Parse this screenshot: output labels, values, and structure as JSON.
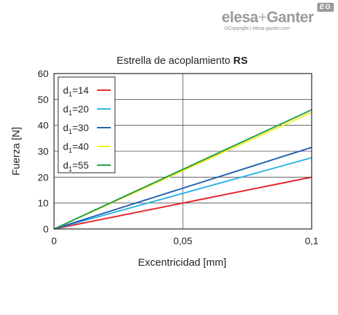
{
  "brand": {
    "logo_a": "elesa",
    "logo_plus": "+",
    "logo_b": "Ganter",
    "badge": "EG",
    "copyright": "©Copyright | elesa-ganter.com"
  },
  "colors": {
    "d14": "#e8202a",
    "d20": "#2ab3e6",
    "d30": "#1f5fae",
    "d40": "#f2ef1c",
    "d55": "#1f9e45"
  },
  "chart_data": {
    "type": "line",
    "title_prefix": "Estrella de acoplamiento ",
    "title_bold": "RS",
    "xlabel": "Excentricidad [mm]",
    "ylabel": "Fuerza [N]",
    "xlim": [
      0,
      0.1
    ],
    "ylim": [
      0,
      60
    ],
    "xticks": [
      0,
      0.05,
      0.1
    ],
    "xtick_labels": [
      "0",
      "0,05",
      "0,1"
    ],
    "yticks": [
      0,
      10,
      20,
      30,
      40,
      50,
      60
    ],
    "ytick_labels": [
      "0",
      "10",
      "20",
      "30",
      "40",
      "50",
      "60"
    ],
    "grid": true,
    "legend_position": "top-left",
    "series": [
      {
        "name": "d1=14",
        "sub": "1",
        "value_label": "=14",
        "color": "#e8202a",
        "x": [
          0,
          0.1
        ],
        "y": [
          0,
          20
        ]
      },
      {
        "name": "d1=20",
        "sub": "1",
        "value_label": "=20",
        "color": "#2ab3e6",
        "x": [
          0,
          0.1
        ],
        "y": [
          0,
          27.5
        ]
      },
      {
        "name": "d1=30",
        "sub": "1",
        "value_label": "=30",
        "color": "#1f5fae",
        "x": [
          0,
          0.1
        ],
        "y": [
          0,
          31.5
        ]
      },
      {
        "name": "d1=40",
        "sub": "1",
        "value_label": "=40",
        "color": "#f2ef1c",
        "x": [
          0,
          0.1
        ],
        "y": [
          0,
          45
        ]
      },
      {
        "name": "d1=55",
        "sub": "1",
        "value_label": "=55",
        "color": "#1f9e45",
        "x": [
          0,
          0.1
        ],
        "y": [
          0,
          46
        ]
      }
    ]
  }
}
